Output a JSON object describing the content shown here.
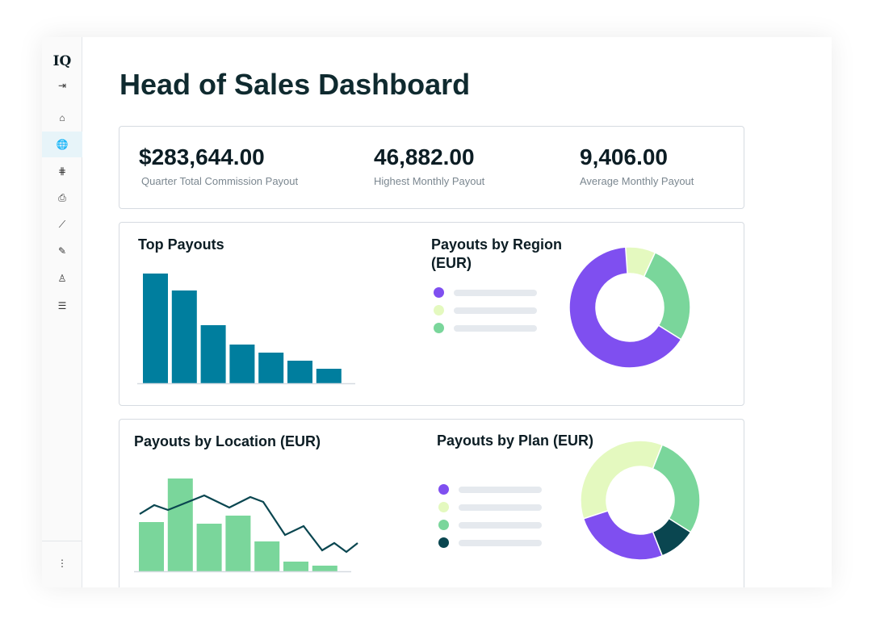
{
  "sidebar": {
    "logo": "IQ",
    "items": [
      {
        "name": "collapse-icon",
        "glyph": "⇥",
        "active": false
      },
      {
        "name": "home-icon",
        "glyph": "⌂",
        "active": false
      },
      {
        "name": "globe-icon",
        "glyph": "🌐",
        "active": true
      },
      {
        "name": "adjustments-icon",
        "glyph": "⋕",
        "active": false
      },
      {
        "name": "inbox-download-icon",
        "glyph": "⎙",
        "active": false
      },
      {
        "name": "line-chart-icon",
        "glyph": "⟋",
        "active": false
      },
      {
        "name": "edit-document-icon",
        "glyph": "✎",
        "active": false
      },
      {
        "name": "user-icon",
        "glyph": "♙",
        "active": false
      },
      {
        "name": "checklist-icon",
        "glyph": "☰",
        "active": false
      }
    ],
    "more": "⋮"
  },
  "header": {
    "title": "Head of Sales Dashboard"
  },
  "kpis": [
    {
      "value": "$283,644.00",
      "label": "Quarter Total Commission Payout"
    },
    {
      "value": "46,882.00",
      "label": "Highest Monthly Payout"
    },
    {
      "value": "9,406.00",
      "label": "Average Monthly Payout"
    }
  ],
  "colors": {
    "purple": "#7f4ff0",
    "lime": "#e4f9bf",
    "green": "#7ad69b",
    "dark": "#0a4650",
    "teal": "#007e9e",
    "axis": "#d6dbe1"
  },
  "chart_data": [
    {
      "type": "bar",
      "title": "Top Payouts",
      "values": [
        136,
        115,
        72,
        48,
        38,
        28,
        18
      ]
    },
    {
      "type": "pie",
      "title": "Payouts by Region (EUR)",
      "slices": [
        {
          "color": "lime",
          "value": 8
        },
        {
          "color": "green",
          "value": 27
        },
        {
          "color": "purple",
          "value": 65
        }
      ],
      "legend_colors": [
        "purple",
        "lime",
        "green"
      ]
    },
    {
      "type": "bar",
      "title": "Payouts by Location (EUR)",
      "values": [
        61,
        115,
        59,
        69,
        37,
        12,
        7
      ],
      "line": [
        71,
        82,
        76,
        94,
        79,
        92,
        86,
        45,
        56,
        26,
        35,
        24,
        35
      ]
    },
    {
      "type": "pie",
      "title": "Payouts by Plan (EUR)",
      "slices": [
        {
          "color": "lime",
          "value": 36
        },
        {
          "color": "green",
          "value": 28
        },
        {
          "color": "dark",
          "value": 10
        },
        {
          "color": "purple",
          "value": 26
        }
      ],
      "legend_colors": [
        "purple",
        "lime",
        "green",
        "dark"
      ]
    }
  ]
}
